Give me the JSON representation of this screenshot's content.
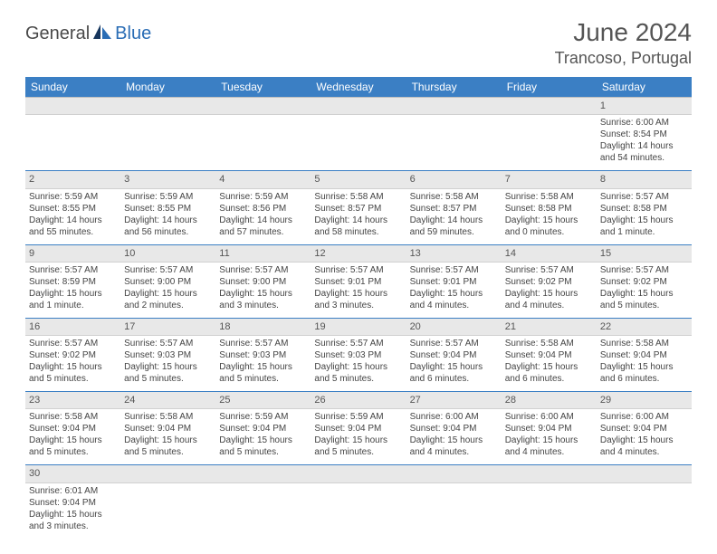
{
  "logo": {
    "text1": "General",
    "text2": "Blue"
  },
  "title": "June 2024",
  "location": "Trancoso, Portugal",
  "header_row": [
    "Sunday",
    "Monday",
    "Tuesday",
    "Wednesday",
    "Thursday",
    "Friday",
    "Saturday"
  ],
  "colors": {
    "header_bg": "#3b7fc4",
    "header_fg": "#ffffff",
    "daynum_bg": "#e8e8e8",
    "row_border": "#3b7fc4",
    "title_color": "#555555",
    "logo_gray": "#4a4a4a",
    "logo_blue": "#2a6db5"
  },
  "weeks": [
    {
      "nums": [
        "",
        "",
        "",
        "",
        "",
        "",
        "1"
      ],
      "cells": [
        null,
        null,
        null,
        null,
        null,
        null,
        {
          "sunrise": "Sunrise: 6:00 AM",
          "sunset": "Sunset: 8:54 PM",
          "daylight": "Daylight: 14 hours and 54 minutes."
        }
      ]
    },
    {
      "nums": [
        "2",
        "3",
        "4",
        "5",
        "6",
        "7",
        "8"
      ],
      "cells": [
        {
          "sunrise": "Sunrise: 5:59 AM",
          "sunset": "Sunset: 8:55 PM",
          "daylight": "Daylight: 14 hours and 55 minutes."
        },
        {
          "sunrise": "Sunrise: 5:59 AM",
          "sunset": "Sunset: 8:55 PM",
          "daylight": "Daylight: 14 hours and 56 minutes."
        },
        {
          "sunrise": "Sunrise: 5:59 AM",
          "sunset": "Sunset: 8:56 PM",
          "daylight": "Daylight: 14 hours and 57 minutes."
        },
        {
          "sunrise": "Sunrise: 5:58 AM",
          "sunset": "Sunset: 8:57 PM",
          "daylight": "Daylight: 14 hours and 58 minutes."
        },
        {
          "sunrise": "Sunrise: 5:58 AM",
          "sunset": "Sunset: 8:57 PM",
          "daylight": "Daylight: 14 hours and 59 minutes."
        },
        {
          "sunrise": "Sunrise: 5:58 AM",
          "sunset": "Sunset: 8:58 PM",
          "daylight": "Daylight: 15 hours and 0 minutes."
        },
        {
          "sunrise": "Sunrise: 5:57 AM",
          "sunset": "Sunset: 8:58 PM",
          "daylight": "Daylight: 15 hours and 1 minute."
        }
      ]
    },
    {
      "nums": [
        "9",
        "10",
        "11",
        "12",
        "13",
        "14",
        "15"
      ],
      "cells": [
        {
          "sunrise": "Sunrise: 5:57 AM",
          "sunset": "Sunset: 8:59 PM",
          "daylight": "Daylight: 15 hours and 1 minute."
        },
        {
          "sunrise": "Sunrise: 5:57 AM",
          "sunset": "Sunset: 9:00 PM",
          "daylight": "Daylight: 15 hours and 2 minutes."
        },
        {
          "sunrise": "Sunrise: 5:57 AM",
          "sunset": "Sunset: 9:00 PM",
          "daylight": "Daylight: 15 hours and 3 minutes."
        },
        {
          "sunrise": "Sunrise: 5:57 AM",
          "sunset": "Sunset: 9:01 PM",
          "daylight": "Daylight: 15 hours and 3 minutes."
        },
        {
          "sunrise": "Sunrise: 5:57 AM",
          "sunset": "Sunset: 9:01 PM",
          "daylight": "Daylight: 15 hours and 4 minutes."
        },
        {
          "sunrise": "Sunrise: 5:57 AM",
          "sunset": "Sunset: 9:02 PM",
          "daylight": "Daylight: 15 hours and 4 minutes."
        },
        {
          "sunrise": "Sunrise: 5:57 AM",
          "sunset": "Sunset: 9:02 PM",
          "daylight": "Daylight: 15 hours and 5 minutes."
        }
      ]
    },
    {
      "nums": [
        "16",
        "17",
        "18",
        "19",
        "20",
        "21",
        "22"
      ],
      "cells": [
        {
          "sunrise": "Sunrise: 5:57 AM",
          "sunset": "Sunset: 9:02 PM",
          "daylight": "Daylight: 15 hours and 5 minutes."
        },
        {
          "sunrise": "Sunrise: 5:57 AM",
          "sunset": "Sunset: 9:03 PM",
          "daylight": "Daylight: 15 hours and 5 minutes."
        },
        {
          "sunrise": "Sunrise: 5:57 AM",
          "sunset": "Sunset: 9:03 PM",
          "daylight": "Daylight: 15 hours and 5 minutes."
        },
        {
          "sunrise": "Sunrise: 5:57 AM",
          "sunset": "Sunset: 9:03 PM",
          "daylight": "Daylight: 15 hours and 5 minutes."
        },
        {
          "sunrise": "Sunrise: 5:57 AM",
          "sunset": "Sunset: 9:04 PM",
          "daylight": "Daylight: 15 hours and 6 minutes."
        },
        {
          "sunrise": "Sunrise: 5:58 AM",
          "sunset": "Sunset: 9:04 PM",
          "daylight": "Daylight: 15 hours and 6 minutes."
        },
        {
          "sunrise": "Sunrise: 5:58 AM",
          "sunset": "Sunset: 9:04 PM",
          "daylight": "Daylight: 15 hours and 6 minutes."
        }
      ]
    },
    {
      "nums": [
        "23",
        "24",
        "25",
        "26",
        "27",
        "28",
        "29"
      ],
      "cells": [
        {
          "sunrise": "Sunrise: 5:58 AM",
          "sunset": "Sunset: 9:04 PM",
          "daylight": "Daylight: 15 hours and 5 minutes."
        },
        {
          "sunrise": "Sunrise: 5:58 AM",
          "sunset": "Sunset: 9:04 PM",
          "daylight": "Daylight: 15 hours and 5 minutes."
        },
        {
          "sunrise": "Sunrise: 5:59 AM",
          "sunset": "Sunset: 9:04 PM",
          "daylight": "Daylight: 15 hours and 5 minutes."
        },
        {
          "sunrise": "Sunrise: 5:59 AM",
          "sunset": "Sunset: 9:04 PM",
          "daylight": "Daylight: 15 hours and 5 minutes."
        },
        {
          "sunrise": "Sunrise: 6:00 AM",
          "sunset": "Sunset: 9:04 PM",
          "daylight": "Daylight: 15 hours and 4 minutes."
        },
        {
          "sunrise": "Sunrise: 6:00 AM",
          "sunset": "Sunset: 9:04 PM",
          "daylight": "Daylight: 15 hours and 4 minutes."
        },
        {
          "sunrise": "Sunrise: 6:00 AM",
          "sunset": "Sunset: 9:04 PM",
          "daylight": "Daylight: 15 hours and 4 minutes."
        }
      ]
    },
    {
      "nums": [
        "30",
        "",
        "",
        "",
        "",
        "",
        ""
      ],
      "cells": [
        {
          "sunrise": "Sunrise: 6:01 AM",
          "sunset": "Sunset: 9:04 PM",
          "daylight": "Daylight: 15 hours and 3 minutes."
        },
        null,
        null,
        null,
        null,
        null,
        null
      ]
    }
  ]
}
